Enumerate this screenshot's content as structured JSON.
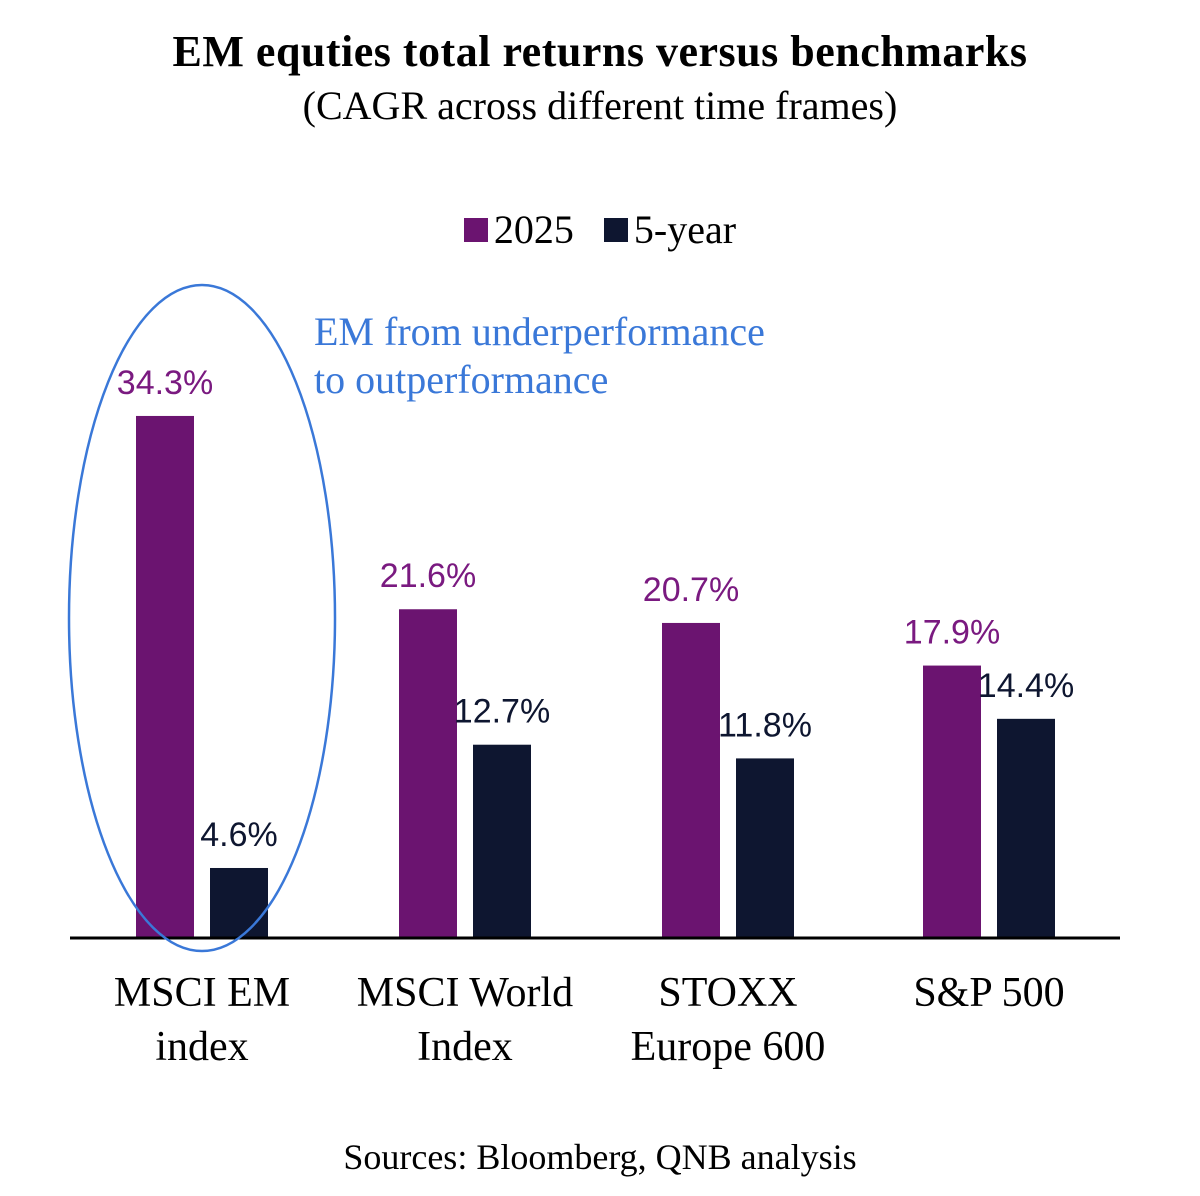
{
  "chart_data": {
    "type": "bar",
    "title": "EM equties total returns versus benchmarks",
    "subtitle": "(CAGR across different time frames)",
    "categories": [
      [
        "MSCI EM",
        "index"
      ],
      [
        "MSCI World",
        "Index"
      ],
      [
        "STOXX",
        "Europe 600"
      ],
      [
        "S&P 500"
      ]
    ],
    "series": [
      {
        "name": "2025",
        "color": "#6b1470",
        "label_color": "#7a1a80",
        "values": [
          34.3,
          21.6,
          20.7,
          17.9
        ],
        "labels": [
          "34.3%",
          "21.6%",
          "20.7%",
          "17.9%"
        ]
      },
      {
        "name": "5-year",
        "color": "#0e1630",
        "label_color": "#0e1630",
        "values": [
          4.6,
          12.7,
          11.8,
          14.4
        ],
        "labels": [
          "4.6%",
          "12.7%",
          "11.8%",
          "14.4%"
        ]
      }
    ],
    "ylim": [
      0,
      40
    ],
    "legend_position": "top-center",
    "grid": false,
    "annotation": {
      "lines": [
        "EM from underperformance",
        "to outperformance"
      ],
      "color": "#3a78d8",
      "highlights_category": "MSCI EM index"
    },
    "source": "Sources: Bloomberg, QNB analysis"
  }
}
